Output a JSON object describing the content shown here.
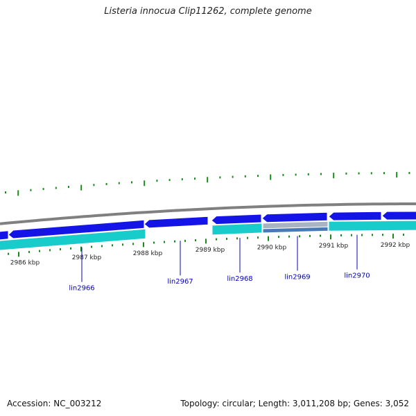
{
  "title": "Listeria innocua Clip11262, complete genome",
  "footer": {
    "accession": "Accession: NC_003212",
    "topology": "Topology: circular; Length: 3,011,208 bp; Genes: 3,052"
  },
  "colors": {
    "backbone": "#808080",
    "gene_blue": "#1414e6",
    "gene_cyan": "#19cccc",
    "gene_grey": "#a8b4c4",
    "gene_steel": "#4a7ab4",
    "ticks": "#1a8a1a",
    "labels": "#0000bb"
  },
  "ruler": [
    "2986 kbp",
    "2987 kbp",
    "2988 kbp",
    "2989 kbp",
    "2990 kbp",
    "2991 kbp",
    "2992 kbp"
  ],
  "genes": [
    "lin2966",
    "lin2967",
    "lin2968",
    "lin2969",
    "lin2970"
  ]
}
